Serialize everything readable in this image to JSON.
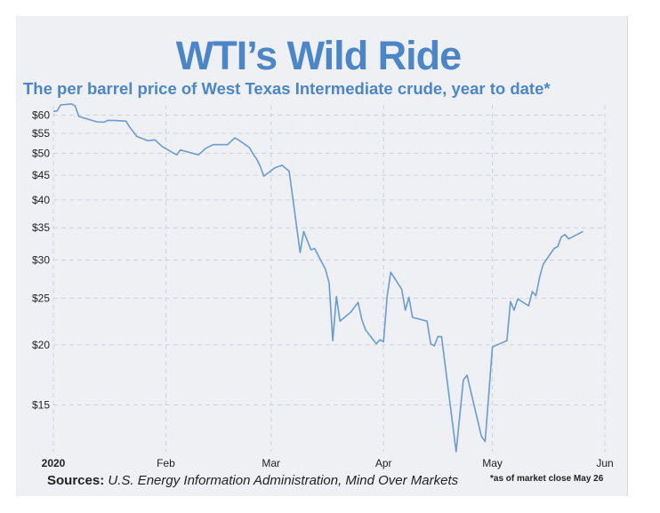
{
  "header": {
    "title": "WTI’s Wild Ride",
    "subtitle": "The per barrel price of West Texas Intermediate crude, year to date*"
  },
  "footer": {
    "sources_label": "Sources:",
    "sources_text": "U.S. Energy Information Administration, Mind Over Markets",
    "footnote": "*as of market close May 26"
  },
  "colors": {
    "title": "#4d86c6",
    "line": "#6c9bd2",
    "grid": "#c9d3e0",
    "background": "#eef0f3"
  },
  "chart_data": {
    "type": "line",
    "yscale": "log",
    "ylim": [
      12,
      63
    ],
    "xlim": [
      "2020-01-01",
      "2020-06-01"
    ],
    "grid": true,
    "y_ticks": [
      {
        "value": 15,
        "label": "$15"
      },
      {
        "value": 20,
        "label": "$20"
      },
      {
        "value": 25,
        "label": "$25"
      },
      {
        "value": 30,
        "label": "$30"
      },
      {
        "value": 35,
        "label": "$35"
      },
      {
        "value": 40,
        "label": "$40"
      },
      {
        "value": 45,
        "label": "$45"
      },
      {
        "value": 50,
        "label": "$50"
      },
      {
        "value": 55,
        "label": "$55"
      },
      {
        "value": 60,
        "label": "$60"
      }
    ],
    "x_ticks": [
      {
        "date": "2020-01-01",
        "label": "2020",
        "bold": true
      },
      {
        "date": "2020-02-01",
        "label": "Feb"
      },
      {
        "date": "2020-03-01",
        "label": "Mar"
      },
      {
        "date": "2020-04-01",
        "label": "Apr"
      },
      {
        "date": "2020-05-01",
        "label": "May"
      },
      {
        "date": "2020-06-01",
        "label": "Jun"
      }
    ],
    "series": [
      {
        "points": [
          [
            "2020-01-01",
            61.1
          ],
          [
            "2020-01-02",
            61.2
          ],
          [
            "2020-01-03",
            63.0
          ],
          [
            "2020-01-06",
            63.3
          ],
          [
            "2020-01-07",
            62.7
          ],
          [
            "2020-01-08",
            59.6
          ],
          [
            "2020-01-10",
            59.0
          ],
          [
            "2020-01-13",
            58.1
          ],
          [
            "2020-01-15",
            58.0
          ],
          [
            "2020-01-16",
            58.5
          ],
          [
            "2020-01-17",
            58.5
          ],
          [
            "2020-01-21",
            58.3
          ],
          [
            "2020-01-22",
            56.7
          ],
          [
            "2020-01-24",
            54.2
          ],
          [
            "2020-01-27",
            53.1
          ],
          [
            "2020-01-29",
            53.3
          ],
          [
            "2020-01-31",
            51.6
          ],
          [
            "2020-02-03",
            50.1
          ],
          [
            "2020-02-04",
            49.6
          ],
          [
            "2020-02-05",
            50.8
          ],
          [
            "2020-02-07",
            50.3
          ],
          [
            "2020-02-10",
            49.6
          ],
          [
            "2020-02-12",
            51.2
          ],
          [
            "2020-02-14",
            52.1
          ],
          [
            "2020-02-18",
            52.1
          ],
          [
            "2020-02-20",
            53.8
          ],
          [
            "2020-02-21",
            53.3
          ],
          [
            "2020-02-24",
            51.4
          ],
          [
            "2020-02-25",
            49.9
          ],
          [
            "2020-02-26",
            48.7
          ],
          [
            "2020-02-27",
            47.0
          ],
          [
            "2020-02-28",
            44.8
          ],
          [
            "2020-03-02",
            46.6
          ],
          [
            "2020-03-04",
            47.2
          ],
          [
            "2020-03-06",
            45.9
          ],
          [
            "2020-03-09",
            31.1
          ],
          [
            "2020-03-10",
            34.4
          ],
          [
            "2020-03-12",
            31.5
          ],
          [
            "2020-03-13",
            31.7
          ],
          [
            "2020-03-16",
            28.7
          ],
          [
            "2020-03-17",
            26.9
          ],
          [
            "2020-03-18",
            20.4
          ],
          [
            "2020-03-19",
            25.2
          ],
          [
            "2020-03-20",
            22.4
          ],
          [
            "2020-03-23",
            23.4
          ],
          [
            "2020-03-25",
            24.5
          ],
          [
            "2020-03-26",
            22.6
          ],
          [
            "2020-03-27",
            21.5
          ],
          [
            "2020-03-30",
            20.1
          ],
          [
            "2020-03-31",
            20.5
          ],
          [
            "2020-04-01",
            20.3
          ],
          [
            "2020-04-02",
            25.3
          ],
          [
            "2020-04-03",
            28.3
          ],
          [
            "2020-04-06",
            26.1
          ],
          [
            "2020-04-07",
            23.6
          ],
          [
            "2020-04-08",
            25.1
          ],
          [
            "2020-04-09",
            22.8
          ],
          [
            "2020-04-13",
            22.4
          ],
          [
            "2020-04-14",
            20.1
          ],
          [
            "2020-04-15",
            19.9
          ],
          [
            "2020-04-16",
            20.8
          ],
          [
            "2020-04-17",
            20.8
          ],
          [
            "2020-04-21",
            12.0
          ],
          [
            "2020-04-23",
            16.9
          ],
          [
            "2020-04-24",
            17.3
          ],
          [
            "2020-04-28",
            12.9
          ],
          [
            "2020-04-29",
            12.6
          ],
          [
            "2020-05-01",
            19.8
          ],
          [
            "2020-05-05",
            20.4
          ],
          [
            "2020-05-06",
            24.6
          ],
          [
            "2020-05-07",
            23.6
          ],
          [
            "2020-05-08",
            24.9
          ],
          [
            "2020-05-11",
            24.1
          ],
          [
            "2020-05-12",
            25.8
          ],
          [
            "2020-05-13",
            25.3
          ],
          [
            "2020-05-14",
            27.6
          ],
          [
            "2020-05-15",
            29.4
          ],
          [
            "2020-05-18",
            31.7
          ],
          [
            "2020-05-19",
            32.0
          ],
          [
            "2020-05-20",
            33.5
          ],
          [
            "2020-05-21",
            33.9
          ],
          [
            "2020-05-22",
            33.2
          ],
          [
            "2020-05-26",
            34.4
          ]
        ]
      }
    ]
  }
}
